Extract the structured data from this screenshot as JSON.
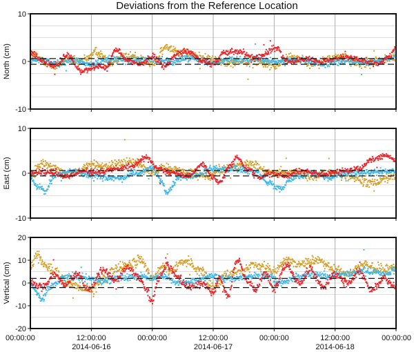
{
  "chart_data": {
    "type": "scatter",
    "title": "Deviations from the Reference Location",
    "x": {
      "range": [
        "2014-06-16 00:00:00",
        "2014-06-19 00:00:00"
      ],
      "ticks": [
        {
          "t": 0,
          "time": "00:00:00",
          "date": ""
        },
        {
          "t": 0.5,
          "time": "12:00:00",
          "date": "2014-06-16"
        },
        {
          "t": 1,
          "time": "00:00:00",
          "date": ""
        },
        {
          "t": 1.5,
          "time": "12:00:00",
          "date": "2014-06-17"
        },
        {
          "t": 2,
          "time": "00:00:00",
          "date": ""
        },
        {
          "t": 2.5,
          "time": "12:00:00",
          "date": "2014-06-18"
        },
        {
          "t": 3,
          "time": "00:00:00",
          "date": ""
        }
      ]
    },
    "series_colors": [
      "#d4a02a",
      "#3fb8e8",
      "#e8262b"
    ],
    "panels": [
      {
        "ylabel": "North (cm)",
        "ylim": [
          -10,
          10
        ],
        "yticks": [
          -10,
          0,
          10
        ],
        "dashed": [
          -0.6,
          0.6
        ],
        "series": [
          {
            "color": "#d4a02a",
            "keys": [
              [
                0,
                1.5
              ],
              [
                0.1,
                0.3
              ],
              [
                0.2,
                -1
              ],
              [
                0.3,
                0.5
              ],
              [
                0.4,
                -0.3
              ],
              [
                0.55,
                2
              ],
              [
                0.65,
                -0.4
              ],
              [
                0.75,
                1.2
              ],
              [
                0.85,
                1
              ],
              [
                1,
                -0.5
              ],
              [
                1.12,
                3
              ],
              [
                1.3,
                1.5
              ],
              [
                1.45,
                0.5
              ],
              [
                1.6,
                -0.2
              ],
              [
                1.8,
                0.2
              ],
              [
                2,
                -0.8
              ],
              [
                2.15,
                1
              ],
              [
                2.3,
                -0.3
              ],
              [
                2.55,
                0.8
              ],
              [
                2.7,
                -0.5
              ],
              [
                2.85,
                0.2
              ],
              [
                3,
                0.8
              ]
            ],
            "noise": 1.3
          },
          {
            "color": "#3fb8e8",
            "keys": [
              [
                0,
                0
              ],
              [
                0.1,
                0.5
              ],
              [
                0.2,
                -0.5
              ],
              [
                0.35,
                0.3
              ],
              [
                0.5,
                -0.7
              ],
              [
                0.65,
                0.6
              ],
              [
                0.8,
                0.2
              ],
              [
                1,
                0.5
              ],
              [
                1.15,
                0
              ],
              [
                1.3,
                0.8
              ],
              [
                1.5,
                -0.3
              ],
              [
                1.65,
                0.5
              ],
              [
                1.8,
                0.4
              ],
              [
                2,
                0
              ],
              [
                2.2,
                0.2
              ],
              [
                2.4,
                -0.5
              ],
              [
                2.6,
                0
              ],
              [
                2.8,
                -0.2
              ],
              [
                3,
                0.8
              ]
            ],
            "noise": 0.9
          },
          {
            "color": "#e8262b",
            "keys": [
              [
                0,
                2
              ],
              [
                0.08,
                0.5
              ],
              [
                0.2,
                -1
              ],
              [
                0.3,
                1.2
              ],
              [
                0.42,
                -2
              ],
              [
                0.55,
                -1
              ],
              [
                0.62,
                -1.3
              ],
              [
                0.7,
                2.3
              ],
              [
                0.8,
                0.2
              ],
              [
                0.9,
                -0.5
              ],
              [
                1,
                1
              ],
              [
                1.1,
                -1
              ],
              [
                1.2,
                1.5
              ],
              [
                1.3,
                2
              ],
              [
                1.4,
                0.2
              ],
              [
                1.5,
                -0.5
              ],
              [
                1.6,
                2
              ],
              [
                1.7,
                2.2
              ],
              [
                1.85,
                0.8
              ],
              [
                2.02,
                2.8
              ],
              [
                2.1,
                0
              ],
              [
                2.25,
                0.5
              ],
              [
                2.4,
                0
              ],
              [
                2.55,
                1
              ],
              [
                2.7,
                0.5
              ],
              [
                2.85,
                -0.5
              ],
              [
                2.95,
                1
              ],
              [
                3,
                3
              ]
            ],
            "noise": 0.8
          }
        ]
      },
      {
        "ylabel": "East (cm)",
        "ylim": [
          -10,
          10
        ],
        "yticks": [
          -10,
          0,
          10
        ],
        "dashed": [
          -0.6,
          0.6
        ],
        "series": [
          {
            "color": "#d4a02a",
            "keys": [
              [
                0,
                -0.5
              ],
              [
                0.1,
                2
              ],
              [
                0.2,
                1
              ],
              [
                0.3,
                -0.5
              ],
              [
                0.4,
                0.5
              ],
              [
                0.5,
                2
              ],
              [
                0.6,
                1.5
              ],
              [
                0.7,
                2.2
              ],
              [
                0.85,
                2.5
              ],
              [
                1,
                0.5
              ],
              [
                1.15,
                1.2
              ],
              [
                1.3,
                0
              ],
              [
                1.45,
                -0.5
              ],
              [
                1.6,
                1.2
              ],
              [
                1.8,
                2
              ],
              [
                2,
                0
              ],
              [
                2.15,
                0.3
              ],
              [
                2.3,
                -0.6
              ],
              [
                2.5,
                0
              ],
              [
                2.65,
                -1
              ],
              [
                2.8,
                -2
              ],
              [
                3,
                -0.5
              ]
            ],
            "noise": 1.3
          },
          {
            "color": "#3fb8e8",
            "keys": [
              [
                0,
                -1
              ],
              [
                0.06,
                -3
              ],
              [
                0.12,
                -4
              ],
              [
                0.2,
                -0.5
              ],
              [
                0.35,
                0.5
              ],
              [
                0.5,
                -0.5
              ],
              [
                0.65,
                -1
              ],
              [
                0.75,
                -1
              ],
              [
                0.85,
                0
              ],
              [
                1,
                1
              ],
              [
                1.08,
                -2
              ],
              [
                1.12,
                -4.5
              ],
              [
                1.22,
                -1
              ],
              [
                1.35,
                -0.5
              ],
              [
                1.5,
                1
              ],
              [
                1.65,
                1
              ],
              [
                1.85,
                0.5
              ],
              [
                1.95,
                -2
              ],
              [
                2.05,
                -3.5
              ],
              [
                2.15,
                -1
              ],
              [
                2.3,
                0
              ],
              [
                2.45,
                -1
              ],
              [
                2.6,
                0
              ],
              [
                2.8,
                0.2
              ],
              [
                3,
                0.5
              ]
            ],
            "noise": 0.9
          },
          {
            "color": "#e8262b",
            "keys": [
              [
                0,
                0
              ],
              [
                0.15,
                0.2
              ],
              [
                0.3,
                -0.8
              ],
              [
                0.45,
                0.5
              ],
              [
                0.55,
                0.2
              ],
              [
                0.65,
                0.8
              ],
              [
                0.82,
                1.5
              ],
              [
                0.95,
                3.5
              ],
              [
                1.05,
                1
              ],
              [
                1.15,
                0.2
              ],
              [
                1.3,
                -0.5
              ],
              [
                1.42,
                2
              ],
              [
                1.5,
                -1
              ],
              [
                1.55,
                -2
              ],
              [
                1.65,
                2
              ],
              [
                1.7,
                3.5
              ],
              [
                1.78,
                1
              ],
              [
                1.88,
                -1
              ],
              [
                1.95,
                0
              ],
              [
                2.1,
                -0.5
              ],
              [
                2.2,
                0.5
              ],
              [
                2.4,
                -0.2
              ],
              [
                2.55,
                0.5
              ],
              [
                2.7,
                1
              ],
              [
                2.8,
                3
              ],
              [
                2.9,
                4
              ],
              [
                3,
                3
              ]
            ],
            "noise": 0.8
          }
        ]
      },
      {
        "ylabel": "Vertical (cm)",
        "ylim": [
          -20,
          20
        ],
        "yticks": [
          -20,
          -10,
          0,
          10,
          20
        ],
        "dashed": [
          -2,
          2
        ],
        "series": [
          {
            "color": "#d4a02a",
            "keys": [
              [
                0,
                8
              ],
              [
                0.06,
                12
              ],
              [
                0.12,
                8
              ],
              [
                0.2,
                5
              ],
              [
                0.3,
                0
              ],
              [
                0.4,
                -2
              ],
              [
                0.5,
                -3
              ],
              [
                0.6,
                2
              ],
              [
                0.7,
                6
              ],
              [
                0.8,
                8
              ],
              [
                0.9,
                10
              ],
              [
                1,
                2
              ],
              [
                1.1,
                8
              ],
              [
                1.15,
                5
              ],
              [
                1.25,
                10
              ],
              [
                1.4,
                5
              ],
              [
                1.5,
                -2
              ],
              [
                1.6,
                3
              ],
              [
                1.7,
                5
              ],
              [
                1.85,
                8
              ],
              [
                2,
                5
              ],
              [
                2.1,
                10
              ],
              [
                2.2,
                8
              ],
              [
                2.35,
                10
              ],
              [
                2.5,
                6
              ],
              [
                2.6,
                4
              ],
              [
                2.75,
                8
              ],
              [
                2.85,
                6
              ],
              [
                3,
                6
              ]
            ],
            "noise": 2.8
          },
          {
            "color": "#3fb8e8",
            "keys": [
              [
                0,
                0
              ],
              [
                0.05,
                -4
              ],
              [
                0.1,
                -7
              ],
              [
                0.15,
                -2
              ],
              [
                0.3,
                3
              ],
              [
                0.45,
                2
              ],
              [
                0.6,
                1
              ],
              [
                0.75,
                2
              ],
              [
                0.9,
                3
              ],
              [
                1,
                2
              ],
              [
                1.1,
                3
              ],
              [
                1.2,
                0
              ],
              [
                1.35,
                1
              ],
              [
                1.5,
                3
              ],
              [
                1.65,
                2
              ],
              [
                1.8,
                3
              ],
              [
                1.95,
                3
              ],
              [
                2.05,
                0
              ],
              [
                2.15,
                2
              ],
              [
                2.3,
                4
              ],
              [
                2.45,
                3
              ],
              [
                2.6,
                4
              ],
              [
                2.75,
                5
              ],
              [
                2.9,
                4
              ],
              [
                3,
                6
              ]
            ],
            "noise": 2.0
          },
          {
            "color": "#e8262b",
            "keys": [
              [
                0,
                0
              ],
              [
                0.1,
                -2
              ],
              [
                0.2,
                4
              ],
              [
                0.28,
                -1
              ],
              [
                0.38,
                4
              ],
              [
                0.48,
                -3
              ],
              [
                0.6,
                6
              ],
              [
                0.7,
                1
              ],
              [
                0.8,
                7
              ],
              [
                0.9,
                2
              ],
              [
                0.95,
                -3
              ],
              [
                1,
                -8
              ],
              [
                1.05,
                2
              ],
              [
                1.12,
                8
              ],
              [
                1.2,
                3
              ],
              [
                1.3,
                -2
              ],
              [
                1.42,
                0
              ],
              [
                1.5,
                -4
              ],
              [
                1.55,
                2
              ],
              [
                1.62,
                -6
              ],
              [
                1.7,
                10
              ],
              [
                1.78,
                1
              ],
              [
                1.85,
                -3
              ],
              [
                1.92,
                4
              ],
              [
                2,
                -2
              ],
              [
                2.1,
                8
              ],
              [
                2.2,
                0
              ],
              [
                2.3,
                6
              ],
              [
                2.4,
                -2
              ],
              [
                2.5,
                4
              ],
              [
                2.6,
                0
              ],
              [
                2.7,
                5
              ],
              [
                2.8,
                -3
              ],
              [
                2.9,
                2
              ],
              [
                3,
                -2
              ]
            ],
            "noise": 2.0
          }
        ]
      }
    ]
  }
}
